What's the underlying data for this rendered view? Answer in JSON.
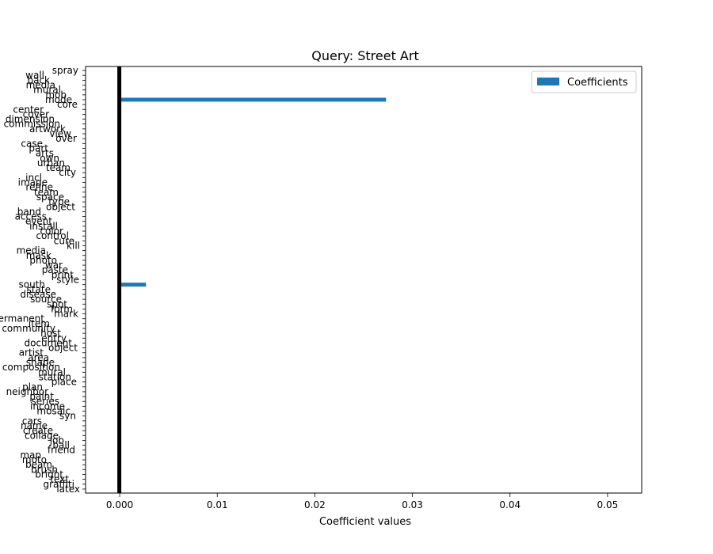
{
  "chart_data": {
    "type": "bar",
    "orientation": "horizontal",
    "title": "Query: Street Art",
    "xlabel": "Coefficient values",
    "ylabel": "",
    "xlim": [
      -0.0035,
      0.0535
    ],
    "xticks": [
      "0.000",
      "0.01",
      "0.02",
      "0.03",
      "0.04",
      "0.05"
    ],
    "xtick_values": [
      0,
      0.01,
      0.02,
      0.03,
      0.04,
      0.05
    ],
    "legend": {
      "position": "top-right",
      "entries": [
        "Coefficients"
      ]
    },
    "grid": false,
    "series": [
      {
        "name": "Coefficients",
        "color": "#1f77b4",
        "categories": [
          "latex",
          "graffiti",
          "text",
          "bright",
          "brush",
          "beam",
          "moto",
          "map",
          "friend",
          "ball",
          "job",
          "collage",
          "create",
          "name",
          "cars",
          "syn",
          "mosaic",
          "income",
          "series",
          "paint",
          "neighbor",
          "plan",
          "place",
          "station",
          "mural",
          "composition",
          "shape",
          "area",
          "artist",
          "object",
          "document",
          "entry",
          "host",
          "community",
          "item",
          "permanent",
          "mark",
          "form",
          "spot",
          "source",
          "disease",
          "state",
          "south",
          "style",
          "print",
          "paste",
          "war",
          "photo",
          "mask",
          "media",
          "kill",
          "cure",
          "control",
          "color",
          "install",
          "event",
          "access",
          "band",
          "object",
          "type",
          "space",
          "team",
          "refine",
          "image",
          "incl",
          "city",
          "team",
          "urban",
          "own",
          "arts",
          "part",
          "case",
          "over",
          "view",
          "artwork",
          "commission",
          "dimension",
          "cover",
          "center",
          "core",
          "mode",
          "mob",
          "mural",
          "media",
          "back",
          "wall",
          "spray"
        ],
        "values": [
          0,
          0,
          0,
          0,
          0,
          0,
          0,
          0,
          0,
          0,
          0,
          0,
          0,
          0,
          0,
          0,
          0,
          0,
          0,
          0,
          0,
          0,
          0,
          0,
          0,
          0,
          0,
          0,
          0,
          0,
          0,
          0,
          0,
          0,
          0,
          0,
          0,
          0,
          0,
          0,
          0,
          0,
          0.0027,
          0,
          0,
          0,
          0,
          0,
          0,
          0,
          0,
          0,
          0,
          0,
          0,
          0,
          0,
          0,
          0,
          0,
          0,
          0,
          0,
          0,
          0,
          0,
          0,
          0,
          0,
          0,
          0,
          0,
          0,
          0,
          0,
          0,
          0,
          0,
          0,
          0,
          0.0273,
          0,
          0,
          0,
          0,
          0,
          0
        ]
      }
    ]
  }
}
